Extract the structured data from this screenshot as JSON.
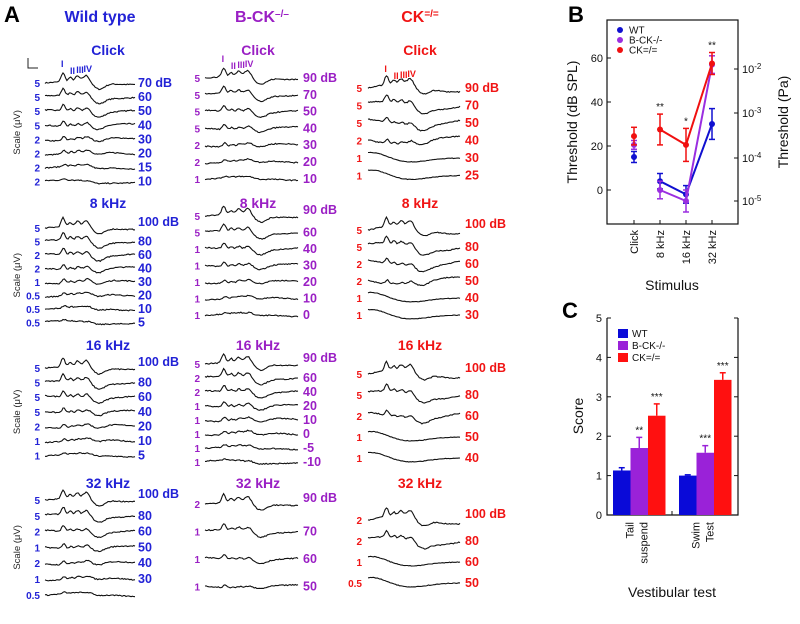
{
  "panel_labels": {
    "a": "A",
    "b": "B",
    "c": "C"
  },
  "abr": {
    "scale_axis_label": "Scale (μV)",
    "columns": [
      {
        "name": "Wild type",
        "name_sup": "",
        "color": "#2222d6",
        "sections": [
          {
            "stimulus": "Click",
            "peak_labels": [
              "I",
              "II",
              "III",
              "IV"
            ],
            "traces": [
              {
                "scale": "5",
                "level": "70 dB"
              },
              {
                "scale": "5",
                "level": "60"
              },
              {
                "scale": "5",
                "level": "50"
              },
              {
                "scale": "5",
                "level": "40"
              },
              {
                "scale": "2",
                "level": "30"
              },
              {
                "scale": "2",
                "level": "20"
              },
              {
                "scale": "2",
                "level": "15"
              },
              {
                "scale": "2",
                "level": "10"
              }
            ]
          },
          {
            "stimulus": "8 kHz",
            "traces": [
              {
                "scale": "5",
                "level": "100 dB"
              },
              {
                "scale": "5",
                "level": "80"
              },
              {
                "scale": "2",
                "level": "60"
              },
              {
                "scale": "2",
                "level": "40"
              },
              {
                "scale": "1",
                "level": "30"
              },
              {
                "scale": "0.5",
                "level": "20"
              },
              {
                "scale": "0.5",
                "level": "10"
              },
              {
                "scale": "0.5",
                "level": "5"
              }
            ]
          },
          {
            "stimulus": "16 kHz",
            "traces": [
              {
                "scale": "5",
                "level": "100 dB"
              },
              {
                "scale": "5",
                "level": "80"
              },
              {
                "scale": "5",
                "level": "60"
              },
              {
                "scale": "5",
                "level": "40"
              },
              {
                "scale": "2",
                "level": "20"
              },
              {
                "scale": "1",
                "level": "10"
              },
              {
                "scale": "1",
                "level": "5"
              }
            ]
          },
          {
            "stimulus": "32 kHz",
            "traces": [
              {
                "scale": "5",
                "level": "100 dB"
              },
              {
                "scale": "5",
                "level": "80"
              },
              {
                "scale": "2",
                "level": "60"
              },
              {
                "scale": "1",
                "level": "50"
              },
              {
                "scale": "2",
                "level": "40"
              },
              {
                "scale": "1",
                "level": "30"
              },
              {
                "scale": "0.5",
                "level": ""
              }
            ]
          }
        ]
      },
      {
        "name": "B-CK",
        "name_sup": "–/–",
        "color": "#9a1fc4",
        "sections": [
          {
            "stimulus": "Click",
            "peak_labels": [
              "I",
              "II",
              "III",
              "IV"
            ],
            "traces": [
              {
                "scale": "5",
                "level": "90 dB"
              },
              {
                "scale": "5",
                "level": "70"
              },
              {
                "scale": "5",
                "level": "50"
              },
              {
                "scale": "5",
                "level": "40"
              },
              {
                "scale": "2",
                "level": "30"
              },
              {
                "scale": "2",
                "level": "20"
              },
              {
                "scale": "1",
                "level": "10"
              }
            ]
          },
          {
            "stimulus": "8 kHz",
            "traces": [
              {
                "scale": "5",
                "level": "90 dB"
              },
              {
                "scale": "5",
                "level": "60"
              },
              {
                "scale": "1",
                "level": "40"
              },
              {
                "scale": "1",
                "level": "30"
              },
              {
                "scale": "1",
                "level": "20"
              },
              {
                "scale": "1",
                "level": "10"
              },
              {
                "scale": "1",
                "level": "0"
              }
            ]
          },
          {
            "stimulus": "16 kHz",
            "traces": [
              {
                "scale": "5",
                "level": "90 dB"
              },
              {
                "scale": "2",
                "level": "60"
              },
              {
                "scale": "2",
                "level": "40"
              },
              {
                "scale": "1",
                "level": "20"
              },
              {
                "scale": "1",
                "level": "10"
              },
              {
                "scale": "1",
                "level": "0"
              },
              {
                "scale": "1",
                "level": "-5"
              },
              {
                "scale": "1",
                "level": "-10"
              }
            ]
          },
          {
            "stimulus": "32 kHz",
            "traces": [
              {
                "scale": "2",
                "level": "90 dB"
              },
              {
                "scale": "1",
                "level": "70"
              },
              {
                "scale": "1",
                "level": "60"
              },
              {
                "scale": "1",
                "level": "50"
              }
            ]
          }
        ]
      },
      {
        "name": "CK",
        "name_sup": "=/=",
        "color": "#f01414",
        "sections": [
          {
            "stimulus": "Click",
            "peak_labels": [
              "I",
              "II",
              "III",
              "IV"
            ],
            "traces": [
              {
                "scale": "5",
                "level": "90 dB"
              },
              {
                "scale": "5",
                "level": "70"
              },
              {
                "scale": "5",
                "level": "50"
              },
              {
                "scale": "2",
                "level": "40"
              },
              {
                "scale": "1",
                "level": "30"
              },
              {
                "scale": "1",
                "level": "25"
              }
            ]
          },
          {
            "stimulus": "8 kHz",
            "traces": [
              {
                "scale": "5",
                "level": "100 dB"
              },
              {
                "scale": "5",
                "level": "80"
              },
              {
                "scale": "2",
                "level": "60"
              },
              {
                "scale": "2",
                "level": "50"
              },
              {
                "scale": "1",
                "level": "40"
              },
              {
                "scale": "1",
                "level": "30"
              }
            ]
          },
          {
            "stimulus": "16 kHz",
            "traces": [
              {
                "scale": "5",
                "level": "100 dB"
              },
              {
                "scale": "5",
                "level": "80"
              },
              {
                "scale": "2",
                "level": "60"
              },
              {
                "scale": "1",
                "level": "50"
              },
              {
                "scale": "1",
                "level": "40"
              }
            ]
          },
          {
            "stimulus": "32 kHz",
            "traces": [
              {
                "scale": "2",
                "level": "100 dB"
              },
              {
                "scale": "2",
                "level": "80"
              },
              {
                "scale": "1",
                "level": "60"
              },
              {
                "scale": "0.5",
                "level": "50"
              }
            ]
          }
        ]
      }
    ]
  },
  "chart_data": [
    {
      "type": "line",
      "title": "",
      "xlabel": "Stimulus",
      "ylabel": "Threshold (dB SPL)",
      "ylabel_right": "Threshold (Pa)",
      "categories": [
        "Click",
        "8 kHz",
        "16 kHz",
        "32 kHz"
      ],
      "ylim": [
        -15,
        73
      ],
      "yticks": [
        "0",
        "20",
        "40",
        "60"
      ],
      "yticks_right": [
        {
          "base": "10",
          "exp": "-2"
        },
        {
          "base": "10",
          "exp": "-3"
        },
        {
          "base": "10",
          "exp": "-4"
        },
        {
          "base": "10",
          "exp": "-5"
        }
      ],
      "legend": "top-left",
      "series": [
        {
          "name": "WT",
          "color": "#1010d0",
          "values": [
            15,
            4,
            -2,
            30
          ],
          "errors": [
            2.5,
            3.5,
            4,
            7
          ]
        },
        {
          "name": "B-CK-/-",
          "color": "#9a2ee0",
          "values": [
            20.5,
            0,
            -5,
            57
          ],
          "errors": [
            2,
            4,
            5,
            4
          ]
        },
        {
          "name": "CK=/=",
          "color": "#f01010",
          "values": [
            24.5,
            27.5,
            20.5,
            57.5
          ],
          "errors": [
            4,
            7,
            7.5,
            5
          ]
        }
      ],
      "significance": [
        "",
        "**",
        "*",
        "**"
      ]
    },
    {
      "type": "bar",
      "title": "",
      "xlabel": "Vestibular test",
      "ylabel": "Score",
      "categories": [
        [
          "Tail",
          "suspend"
        ],
        [
          "Swim",
          "Test"
        ]
      ],
      "ylim": [
        0,
        5
      ],
      "yticks": [
        "0",
        "1",
        "2",
        "3",
        "4",
        "5"
      ],
      "legend": "top-left",
      "series": [
        {
          "name": "WT",
          "color": "#0a0ad8",
          "values": [
            1.13,
            1.0
          ],
          "errors": [
            0.07,
            0.02
          ],
          "significance": [
            "",
            ""
          ]
        },
        {
          "name": "B-CK-/-",
          "color": "#9a22d8",
          "values": [
            1.7,
            1.58
          ],
          "errors": [
            0.27,
            0.18
          ],
          "significance": [
            "**",
            "***"
          ]
        },
        {
          "name": "CK=/=",
          "color": "#ff1010",
          "values": [
            2.52,
            3.43
          ],
          "errors": [
            0.3,
            0.18
          ],
          "significance": [
            "***",
            "***"
          ]
        }
      ]
    }
  ]
}
